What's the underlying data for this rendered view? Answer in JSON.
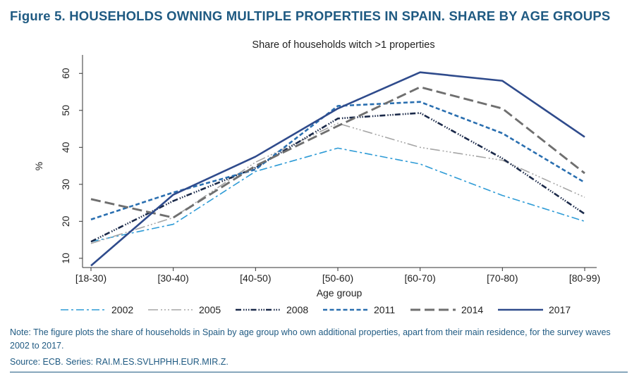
{
  "figure": {
    "title": "Figure 5. HOUSEHOLDS OWNING MULTIPLE PROPERTIES IN SPAIN. SHARE BY AGE GROUPS",
    "note": "Note: The figure plots the share of households in Spain by age group who own additional properties, apart from their main residence, for the survey waves 2002 to 2017.",
    "source": "Source: ECB. Series: RAI.M.ES.SVLHPHH.EUR.MIR.Z."
  },
  "chart_data": {
    "type": "line",
    "title": "Share of households witch >1 properties",
    "xlabel": "Age group",
    "ylabel": "%",
    "categories": [
      "[18-30)",
      "[30-40)",
      "[40-50)",
      "[50-60)",
      "[60-70)",
      "[70-80)",
      "[80-99)"
    ],
    "yticks": [
      10,
      20,
      30,
      40,
      50,
      60
    ],
    "ylim": [
      7.5,
      65
    ],
    "grid": false,
    "legend_position": "bottom",
    "series": [
      {
        "name": "2002",
        "color": "#2e9bd6",
        "dash": "dashdot",
        "values": [
          14.5,
          19.2,
          33.5,
          39.8,
          35.5,
          27.0,
          20.0
        ]
      },
      {
        "name": "2005",
        "color": "#a6a6a6",
        "dash": "longdashdot",
        "values": [
          14.0,
          21.0,
          36.0,
          46.5,
          40.0,
          36.5,
          26.5
        ]
      },
      {
        "name": "2008",
        "color": "#1b2a4a",
        "dash": "dashdots",
        "values": [
          14.5,
          25.5,
          34.5,
          47.8,
          49.3,
          37.0,
          22.0
        ]
      },
      {
        "name": "2011",
        "color": "#2a6fb0",
        "dash": "shortdash",
        "values": [
          20.5,
          27.8,
          34.0,
          51.2,
          52.3,
          43.8,
          30.5
        ]
      },
      {
        "name": "2014",
        "color": "#6f6f6f",
        "dash": "longdash",
        "values": [
          26.0,
          21.0,
          35.0,
          45.8,
          56.3,
          50.5,
          33.0
        ]
      },
      {
        "name": "2017",
        "color": "#2f4b8c",
        "dash": "solid",
        "values": [
          8.0,
          27.2,
          37.5,
          50.5,
          60.3,
          58.0,
          42.8
        ]
      }
    ]
  }
}
